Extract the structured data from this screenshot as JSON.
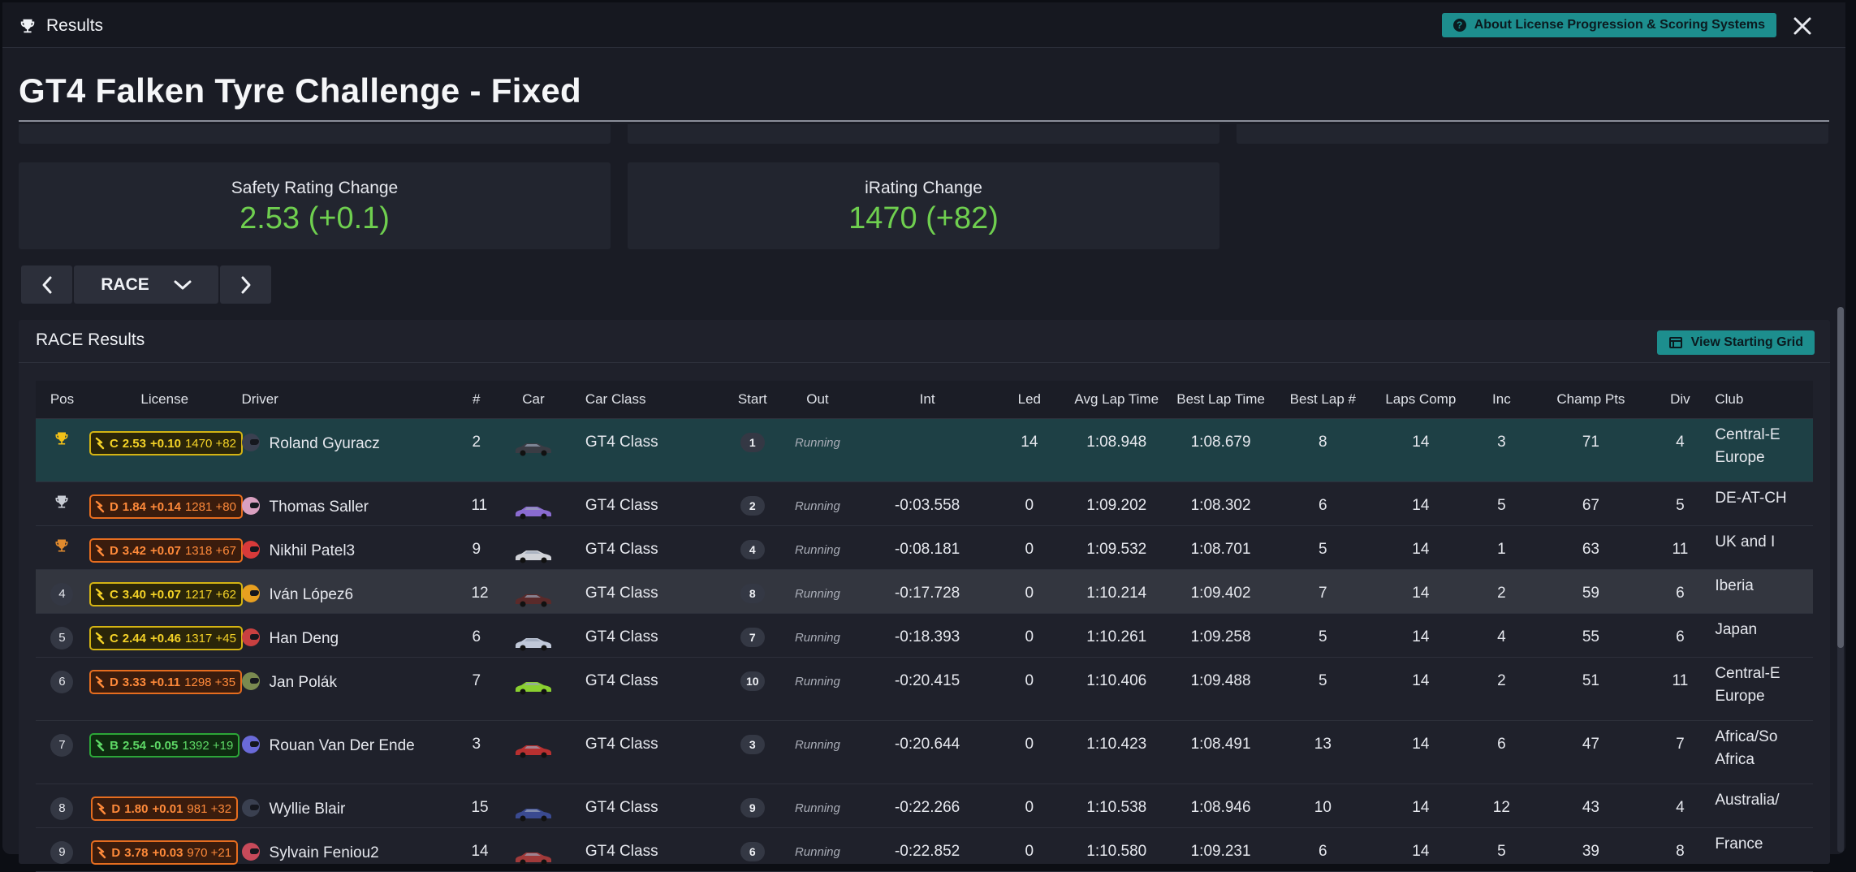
{
  "window": {
    "title": "Results",
    "about_button": "About License Progression & Scoring Systems"
  },
  "event": {
    "title": "GT4 Falken Tyre Challenge - Fixed"
  },
  "stats": [
    {
      "label": "Safety Rating Change",
      "value": "2.53 (+0.1)"
    },
    {
      "label": "iRating Change",
      "value": "1470 (+82)"
    }
  ],
  "session_nav": {
    "selected": "RACE"
  },
  "results": {
    "title": "RACE Results",
    "view_grid_button": "View Starting Grid",
    "columns": [
      "Pos",
      "License",
      "Driver",
      "#",
      "Car",
      "Car Class",
      "Start",
      "Out",
      "Int",
      "Led",
      "Avg Lap Time",
      "Best Lap Time",
      "Best Lap #",
      "Laps Comp",
      "Inc",
      "Champ Pts",
      "Div",
      "Club"
    ],
    "rows": [
      {
        "pos": "1",
        "trophy": "gold",
        "lic_class": "C",
        "lic_sr": "2.53",
        "lic_sr_delta": "+0.10",
        "lic_ir": "1470 +82",
        "helmet": "#3a4050",
        "driver": "Roland Gyuracz",
        "num": "2",
        "car_color": "#3a3c44",
        "car_class": "GT4 Class",
        "start": "1",
        "out": "Running",
        "int": "",
        "led": "14",
        "avg": "1:08.948",
        "best": "1:08.679",
        "best_lap": "8",
        "laps": "14",
        "inc": "3",
        "pts": "71",
        "div": "4",
        "club": "Central-E Europe",
        "tall": true
      },
      {
        "pos": "2",
        "trophy": "silver",
        "lic_class": "D",
        "lic_sr": "1.84",
        "lic_sr_delta": "+0.14",
        "lic_ir": "1281 +80",
        "helmet": "#d9a0c0",
        "driver": "Thomas Saller",
        "num": "11",
        "car_color": "#8a6bd0",
        "car_class": "GT4 Class",
        "start": "2",
        "out": "Running",
        "int": "-0:03.558",
        "led": "0",
        "avg": "1:09.202",
        "best": "1:08.302",
        "best_lap": "6",
        "laps": "14",
        "inc": "5",
        "pts": "67",
        "div": "5",
        "club": "DE-AT-CH",
        "fastest": true
      },
      {
        "pos": "3",
        "trophy": "bronze",
        "lic_class": "D",
        "lic_sr": "3.42",
        "lic_sr_delta": "+0.07",
        "lic_ir": "1318 +67",
        "helmet": "#d83a3a",
        "driver": "Nikhil Patel3",
        "num": "9",
        "car_color": "#d0d2d8",
        "car_class": "GT4 Class",
        "start": "4",
        "out": "Running",
        "int": "-0:08.181",
        "led": "0",
        "avg": "1:09.532",
        "best": "1:08.701",
        "best_lap": "5",
        "laps": "14",
        "inc": "1",
        "pts": "63",
        "div": "11",
        "club": "UK and I"
      },
      {
        "pos": "4",
        "lic_class": "C",
        "lic_sr": "3.40",
        "lic_sr_delta": "+0.07",
        "lic_ir": "1217 +62",
        "helmet": "#e8a020",
        "driver": "Iván López6",
        "num": "12",
        "car_color": "#5a2a2a",
        "car_class": "GT4 Class",
        "start": "8",
        "out": "Running",
        "int": "-0:17.728",
        "led": "0",
        "avg": "1:10.214",
        "best": "1:09.402",
        "best_lap": "7",
        "laps": "14",
        "inc": "2",
        "pts": "59",
        "div": "6",
        "club": "Iberia",
        "hover": true
      },
      {
        "pos": "5",
        "lic_class": "C",
        "lic_sr": "2.44",
        "lic_sr_delta": "+0.46",
        "lic_ir": "1317 +45",
        "helmet": "#c84040",
        "driver": "Han Deng",
        "num": "6",
        "car_color": "#c0c8d8",
        "car_class": "GT4 Class",
        "start": "7",
        "out": "Running",
        "int": "-0:18.393",
        "led": "0",
        "avg": "1:10.261",
        "best": "1:09.258",
        "best_lap": "5",
        "laps": "14",
        "inc": "4",
        "pts": "55",
        "div": "6",
        "club": "Japan"
      },
      {
        "pos": "6",
        "lic_class": "D",
        "lic_sr": "3.33",
        "lic_sr_delta": "+0.11",
        "lic_ir": "1298 +35",
        "helmet": "#7a8a50",
        "driver": "Jan Polák",
        "num": "7",
        "car_color": "#8ad030",
        "car_class": "GT4 Class",
        "start": "10",
        "out": "Running",
        "int": "-0:20.415",
        "led": "0",
        "avg": "1:10.406",
        "best": "1:09.488",
        "best_lap": "5",
        "laps": "14",
        "inc": "2",
        "pts": "51",
        "div": "11",
        "club": "Central-E Europe",
        "tall": true
      },
      {
        "pos": "7",
        "lic_class": "B",
        "lic_sr": "2.54",
        "lic_sr_delta": "-0.05",
        "lic_ir": "1392 +19",
        "helmet": "#6a6ad8",
        "driver": "Rouan Van Der Ende",
        "num": "3",
        "car_color": "#b83030",
        "car_class": "GT4 Class",
        "start": "3",
        "out": "Running",
        "int": "-0:20.644",
        "led": "0",
        "avg": "1:10.423",
        "best": "1:08.491",
        "best_lap": "13",
        "laps": "14",
        "inc": "6",
        "pts": "47",
        "div": "7",
        "club": "Africa/So Africa",
        "tall": true
      },
      {
        "pos": "8",
        "lic_class": "D",
        "lic_sr": "1.80",
        "lic_sr_delta": "+0.01",
        "lic_ir": "981 +32",
        "helmet": "#3a4050",
        "driver": "Wyllie Blair",
        "num": "15",
        "car_color": "#3a4a90",
        "car_class": "GT4 Class",
        "start": "9",
        "out": "Running",
        "int": "-0:22.266",
        "led": "0",
        "avg": "1:10.538",
        "best": "1:08.946",
        "best_lap": "10",
        "laps": "14",
        "inc": "12",
        "pts": "43",
        "div": "4",
        "club": "Australia/"
      },
      {
        "pos": "9",
        "lic_class": "D",
        "lic_sr": "3.78",
        "lic_sr_delta": "+0.03",
        "lic_ir": "970 +21",
        "helmet": "#c84a5a",
        "driver": "Sylvain Feniou2",
        "num": "14",
        "car_color": "#a03a3a",
        "car_class": "GT4 Class",
        "start": "6",
        "out": "Running",
        "int": "-0:22.852",
        "led": "0",
        "avg": "1:10.580",
        "best": "1:09.231",
        "best_lap": "6",
        "laps": "14",
        "inc": "5",
        "pts": "39",
        "div": "8",
        "club": "France"
      }
    ]
  }
}
